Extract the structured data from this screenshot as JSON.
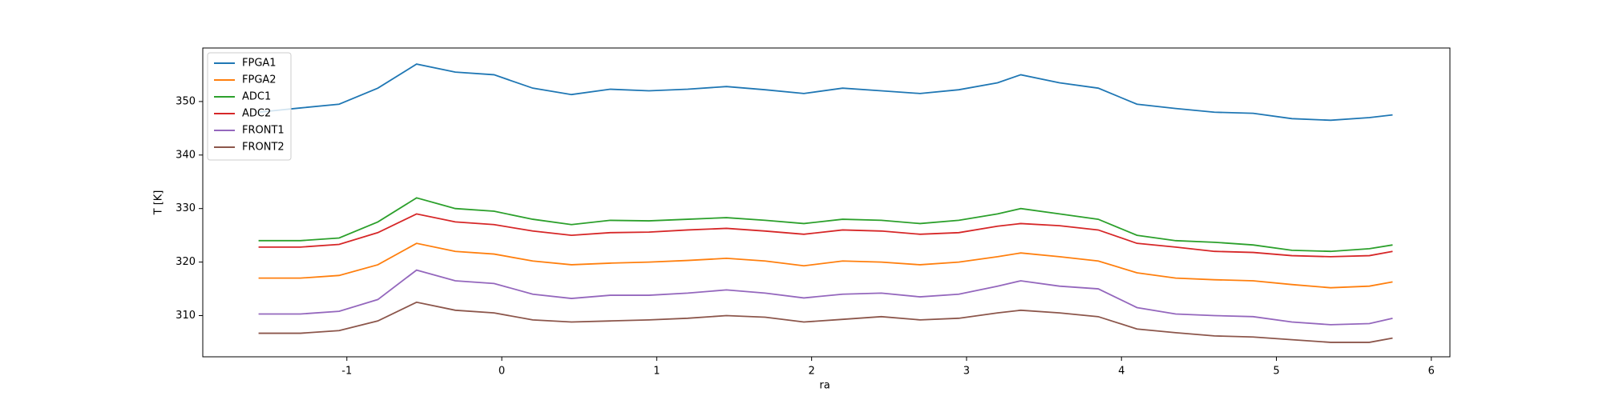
{
  "chart_data": {
    "type": "line",
    "x_label": "ra",
    "y_label": "T [K]",
    "x": [
      -1.57,
      -1.3,
      -1.05,
      -0.8,
      -0.55,
      -0.3,
      -0.05,
      0.2,
      0.45,
      0.7,
      0.95,
      1.2,
      1.45,
      1.7,
      1.95,
      2.2,
      2.45,
      2.7,
      2.95,
      3.2,
      3.35,
      3.6,
      3.85,
      4.1,
      4.35,
      4.6,
      4.85,
      5.1,
      5.35,
      5.6,
      5.75
    ],
    "series": [
      {
        "name": "FPGA1",
        "color": "#1f77b4",
        "values": [
          348,
          348.8,
          349.5,
          352.5,
          357,
          355.5,
          355,
          352.5,
          351.3,
          352.3,
          352,
          352.3,
          352.8,
          352.2,
          351.5,
          352.5,
          352,
          351.5,
          352.2,
          353.5,
          355,
          353.5,
          352.5,
          349.5,
          348.7,
          348,
          347.8,
          346.8,
          346.5,
          347,
          347.5
        ]
      },
      {
        "name": "FPGA2",
        "color": "#ff7f0e",
        "values": [
          317,
          317,
          317.5,
          319.5,
          323.5,
          322,
          321.5,
          320.2,
          319.5,
          319.8,
          320,
          320.3,
          320.7,
          320.2,
          319.3,
          320.2,
          320,
          319.5,
          320,
          321,
          321.7,
          321,
          320.2,
          318,
          317,
          316.7,
          316.5,
          315.8,
          315.2,
          315.5,
          316.3
        ]
      },
      {
        "name": "ADC1",
        "color": "#2ca02c",
        "values": [
          324,
          324,
          324.5,
          327.5,
          332,
          330,
          329.5,
          328,
          327,
          327.8,
          327.7,
          328,
          328.3,
          327.8,
          327.2,
          328,
          327.8,
          327.2,
          327.8,
          329,
          330,
          329,
          328,
          325,
          324,
          323.7,
          323.2,
          322.2,
          322,
          322.5,
          323.2
        ]
      },
      {
        "name": "ADC2",
        "color": "#d62728",
        "values": [
          322.8,
          322.8,
          323.3,
          325.5,
          329,
          327.5,
          327,
          325.8,
          325,
          325.5,
          325.6,
          326,
          326.3,
          325.8,
          325.2,
          326,
          325.8,
          325.2,
          325.5,
          326.7,
          327.2,
          326.8,
          326,
          323.5,
          322.8,
          322,
          321.8,
          321.2,
          321,
          321.2,
          322
        ]
      },
      {
        "name": "FRONT1",
        "color": "#9467bd",
        "values": [
          310.3,
          310.3,
          310.8,
          313,
          318.5,
          316.5,
          316,
          314,
          313.2,
          313.8,
          313.8,
          314.2,
          314.8,
          314.2,
          313.3,
          314,
          314.2,
          313.5,
          314,
          315.5,
          316.5,
          315.5,
          315,
          311.5,
          310.3,
          310,
          309.8,
          308.8,
          308.3,
          308.5,
          309.5
        ]
      },
      {
        "name": "FRONT2",
        "color": "#8c564b",
        "values": [
          306.7,
          306.7,
          307.2,
          309,
          312.5,
          311,
          310.5,
          309.2,
          308.8,
          309,
          309.2,
          309.5,
          310,
          309.7,
          308.8,
          309.3,
          309.8,
          309.2,
          309.5,
          310.5,
          311,
          310.5,
          309.8,
          307.5,
          306.8,
          306.2,
          306,
          305.5,
          305,
          305,
          305.8
        ]
      }
    ],
    "xlim": [
      -1.93,
      6.12
    ],
    "xticks": [
      -1,
      0,
      1,
      2,
      3,
      4,
      5,
      6
    ],
    "ylim": [
      302.3,
      360
    ],
    "yticks": [
      310,
      320,
      330,
      340,
      350
    ],
    "grid": false,
    "legend": "upper left"
  }
}
